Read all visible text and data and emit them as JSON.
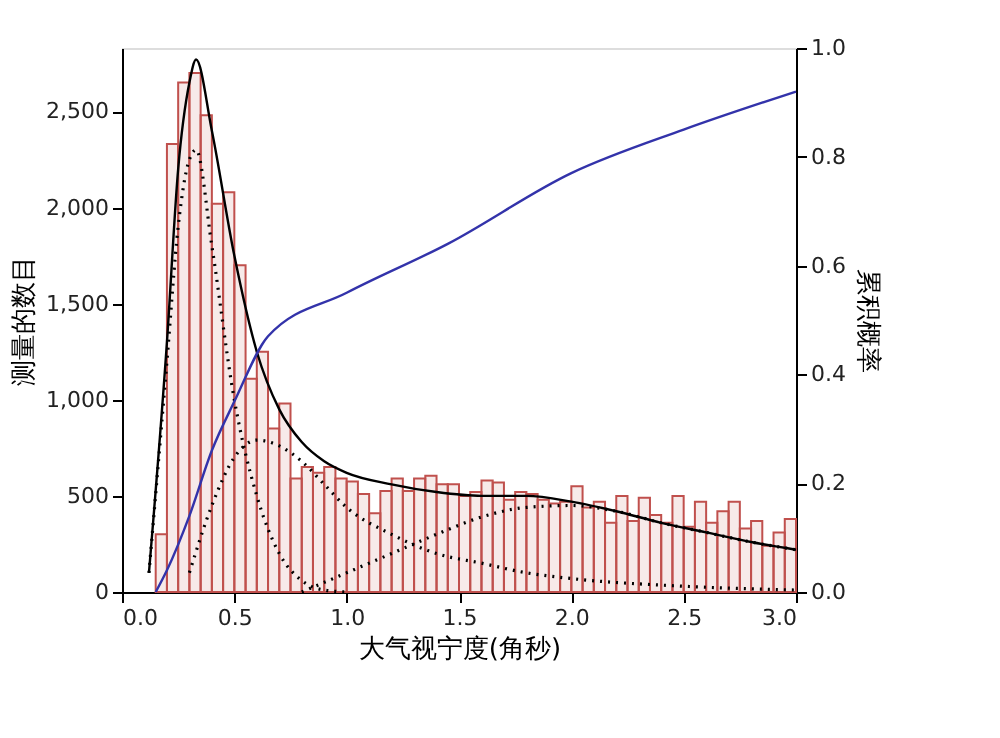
{
  "chart_data": {
    "type": "histogram",
    "xlabel": "大气视宁度(角秒)",
    "ylabel": "测量的数目",
    "y2label": "累积概率",
    "bins": [
      0.15,
      0.2,
      0.25,
      0.3,
      0.35,
      0.4,
      0.45,
      0.5,
      0.55,
      0.6,
      0.65,
      0.7,
      0.75,
      0.8,
      0.85,
      0.9,
      0.95,
      1.0,
      1.05,
      1.1,
      1.15,
      1.2,
      1.25,
      1.3,
      1.35,
      1.4,
      1.45,
      1.5,
      1.55,
      1.6,
      1.65,
      1.7,
      1.75,
      1.8,
      1.85,
      1.9,
      1.95,
      2.0,
      2.05,
      2.1,
      2.15,
      2.2,
      2.25,
      2.3,
      2.35,
      2.4,
      2.45,
      2.5,
      2.55,
      2.6,
      2.65,
      2.7,
      2.75,
      2.8,
      2.85,
      2.9,
      2.95,
      3.0
    ],
    "values": [
      300,
      2330,
      2650,
      2700,
      2480,
      2020,
      2080,
      1700,
      1110,
      1250,
      850,
      980,
      590,
      650,
      620,
      650,
      590,
      575,
      510,
      410,
      525,
      590,
      525,
      590,
      605,
      560,
      560,
      500,
      520,
      580,
      570,
      480,
      520,
      510,
      480,
      460,
      470,
      550,
      440,
      470,
      360,
      500,
      370,
      490,
      400,
      360,
      500,
      340,
      470,
      360,
      420,
      470,
      330,
      370,
      240,
      310,
      380
    ],
    "color": "#c0504d",
    "series": [
      {
        "type": "line",
        "color": "#000000",
        "line_style": "solid",
        "x": [
          0.12,
          0.2,
          0.25,
          0.3,
          0.33,
          0.4,
          0.5,
          0.6,
          0.7,
          0.8,
          0.9,
          1.0,
          1.2,
          1.4,
          1.6,
          1.8,
          2.0,
          2.2,
          2.4,
          2.6,
          2.8,
          3.0
        ],
        "values": [
          100,
          1300,
          2200,
          2650,
          2770,
          2400,
          1750,
          1250,
          950,
          780,
          680,
          620,
          560,
          520,
          500,
          500,
          470,
          420,
          360,
          310,
          260,
          220
        ]
      },
      {
        "type": "line",
        "color": "#000000",
        "line_style": "dotted",
        "x": [
          0.12,
          0.2,
          0.25,
          0.3,
          0.33,
          0.4,
          0.5,
          0.6,
          0.7,
          0.8,
          0.9,
          1.0
        ],
        "values": [
          100,
          1200,
          1900,
          2250,
          2300,
          1800,
          1000,
          500,
          200,
          60,
          10,
          0
        ]
      },
      {
        "type": "line",
        "color": "#000000",
        "line_style": "dotted",
        "x": [
          0.3,
          0.4,
          0.5,
          0.6,
          0.7,
          0.8,
          0.9,
          1.0,
          1.2,
          1.4,
          1.6,
          1.8,
          2.0,
          2.5,
          3.0
        ],
        "values": [
          100,
          450,
          700,
          790,
          760,
          680,
          560,
          440,
          300,
          200,
          150,
          100,
          70,
          30,
          10
        ]
      },
      {
        "type": "line",
        "color": "#000000",
        "line_style": "dotted",
        "x": [
          0.8,
          1.0,
          1.2,
          1.4,
          1.6,
          1.8,
          2.0,
          2.2,
          2.4,
          2.6,
          2.8,
          3.0
        ],
        "values": [
          0,
          100,
          200,
          300,
          390,
          440,
          450,
          420,
          360,
          310,
          260,
          220
        ]
      },
      {
        "type": "line",
        "color": "#3333aa",
        "line_style": "solid",
        "axis": "y2",
        "x": [
          0.15,
          0.2,
          0.3,
          0.4,
          0.5,
          0.65,
          1.0,
          1.45,
          2.0,
          2.5,
          3.0
        ],
        "values": [
          0,
          0.04,
          0.14,
          0.26,
          0.35,
          0.47,
          0.55,
          0.64,
          0.77,
          0.85,
          0.92
        ]
      }
    ],
    "xlim": [
      0,
      3.0
    ],
    "xticks": [
      {
        "value": 0,
        "label": "0.0"
      },
      0.5,
      {
        "value": 1,
        "label": "1.0"
      },
      1.5,
      {
        "value": 2,
        "label": "2.0"
      },
      2.5,
      {
        "value": 3,
        "label": "3.0"
      }
    ],
    "ylim": [
      0,
      2830
    ],
    "yticks": [
      0,
      500,
      {
        "value": 1000,
        "label": "1,000"
      },
      {
        "value": 1500,
        "label": "1,500"
      },
      {
        "value": 2000,
        "label": "2,000"
      },
      {
        "value": 2500,
        "label": "2,500"
      }
    ],
    "y2lim": [
      0,
      1.0
    ],
    "y2ticks": [
      {
        "value": 0,
        "label": "0.0"
      },
      0.2,
      0.4,
      0.6,
      0.8,
      {
        "value": 1,
        "label": "1.0"
      }
    ],
    "grid": false
  }
}
